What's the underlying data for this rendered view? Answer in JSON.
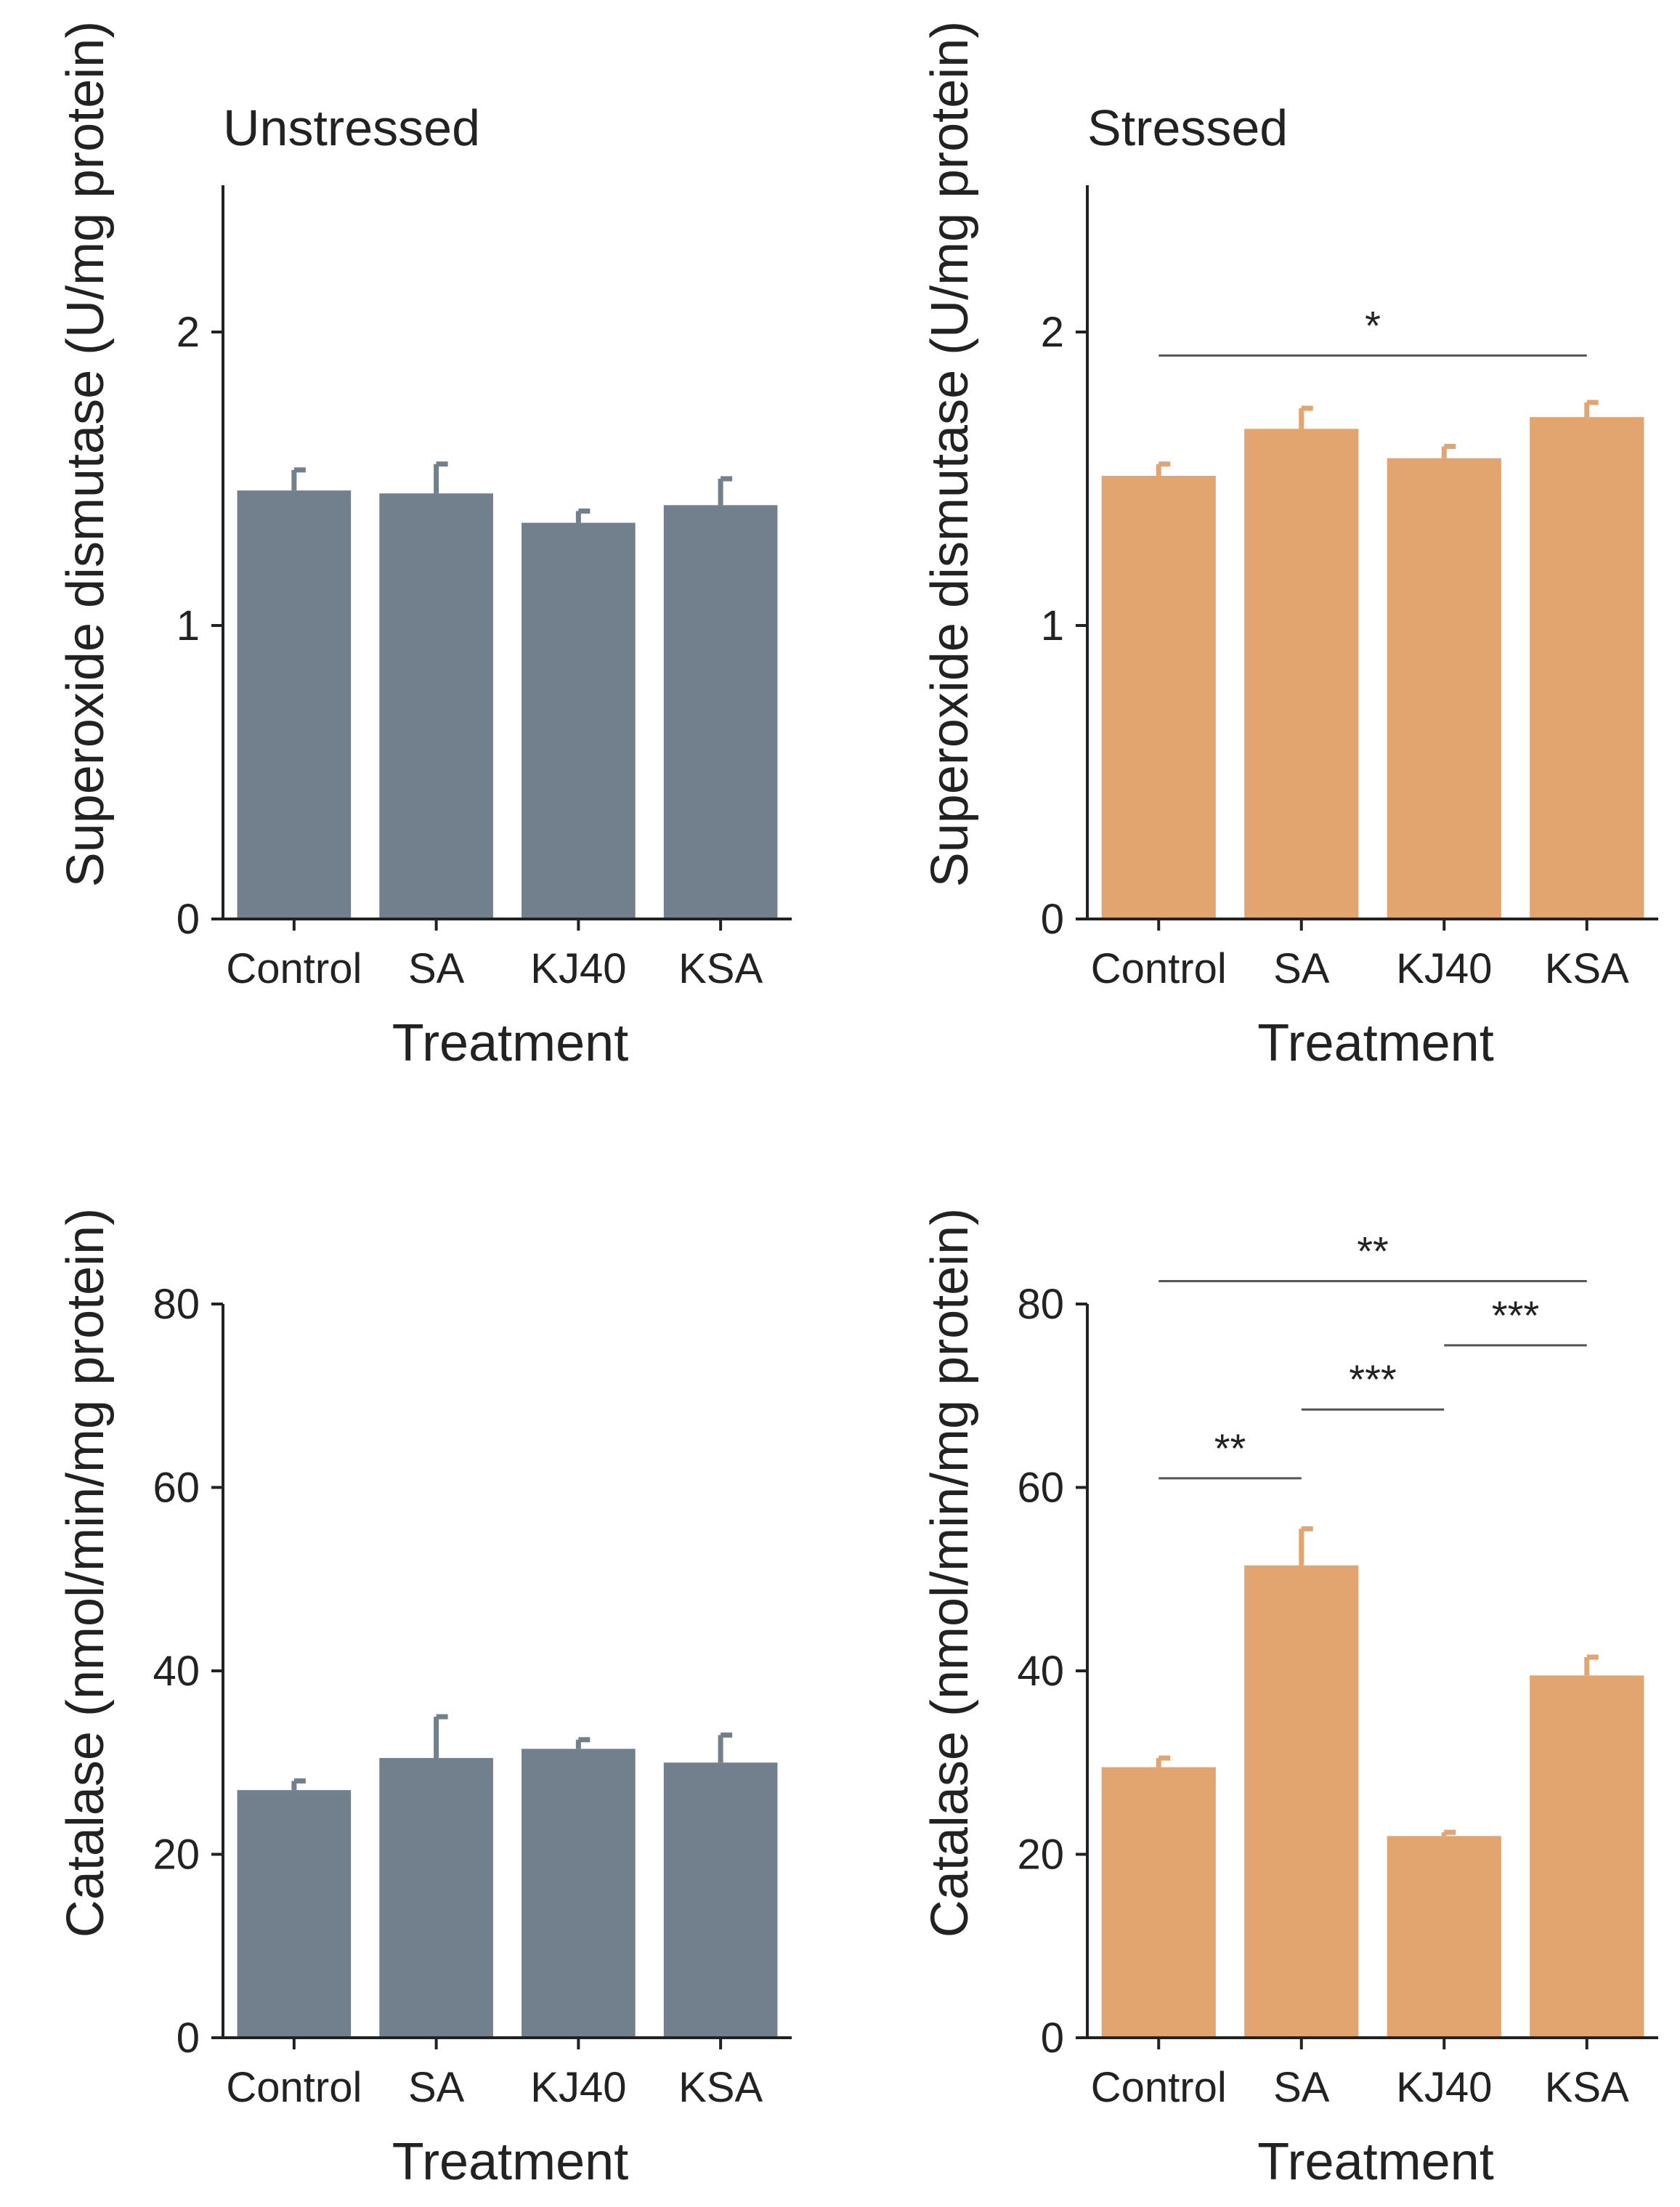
{
  "colors": {
    "unstressed": "#727f8c",
    "stressed": "#e2a56f",
    "axis": "#222222"
  },
  "chart_data": [
    {
      "type": "bar",
      "title": "Unstressed",
      "categories": [
        "Control",
        "SA",
        "KJ40",
        "KSA"
      ],
      "values": [
        1.46,
        1.45,
        1.35,
        1.41
      ],
      "errors": [
        0.07,
        0.1,
        0.04,
        0.09
      ],
      "xlabel": "Treatment",
      "ylabel": "Superoxide dismutase (U/mg protein)",
      "ylim": [
        0,
        2.5
      ],
      "yticks": [
        "0",
        "1",
        "2"
      ],
      "tick_values": [
        0,
        1,
        2
      ],
      "color": "unstressed",
      "significance": []
    },
    {
      "type": "bar",
      "title": "Stressed",
      "categories": [
        "Control",
        "SA",
        "KJ40",
        "KSA"
      ],
      "values": [
        1.51,
        1.67,
        1.57,
        1.71
      ],
      "errors": [
        0.04,
        0.07,
        0.04,
        0.05
      ],
      "xlabel": "Treatment",
      "ylabel": "Superoxide dismutase (U/mg protein)",
      "ylim": [
        0,
        2.5
      ],
      "yticks": [
        "0",
        "1",
        "2"
      ],
      "tick_values": [
        0,
        1,
        2
      ],
      "color": "stressed",
      "significance": [
        {
          "from": 0,
          "to": 3,
          "level": 1.92,
          "label": "*"
        }
      ]
    },
    {
      "type": "bar",
      "title": "",
      "categories": [
        "Control",
        "SA",
        "KJ40",
        "KSA"
      ],
      "values": [
        27,
        30.5,
        31.5,
        30
      ],
      "errors": [
        1,
        4.5,
        1,
        3
      ],
      "xlabel": "Treatment",
      "ylabel": "Catalase (nmol/min/mg protein)",
      "ylim": [
        0,
        80
      ],
      "yticks": [
        "0",
        "20",
        "40",
        "60",
        "80"
      ],
      "tick_values": [
        0,
        20,
        40,
        60,
        80
      ],
      "color": "unstressed",
      "significance": []
    },
    {
      "type": "bar",
      "title": "",
      "categories": [
        "Control",
        "SA",
        "KJ40",
        "KSA"
      ],
      "values": [
        29.5,
        51.5,
        22,
        39.5
      ],
      "errors": [
        1,
        4,
        0.4,
        2
      ],
      "xlabel": "Treatment",
      "ylabel": "Catalase (nmol/min/mg protein)",
      "ylim": [
        0,
        80
      ],
      "yticks": [
        "0",
        "20",
        "40",
        "60",
        "80"
      ],
      "tick_values": [
        0,
        20,
        40,
        60,
        80
      ],
      "color": "stressed",
      "significance": [
        {
          "from": 0,
          "to": 1,
          "level": 61,
          "label": "**"
        },
        {
          "from": 1,
          "to": 2,
          "level": 68.5,
          "label": "***"
        },
        {
          "from": 2,
          "to": 3,
          "level": 75.5,
          "label": "***"
        },
        {
          "from": 0,
          "to": 3,
          "level": 82.5,
          "label": "**"
        }
      ]
    }
  ]
}
